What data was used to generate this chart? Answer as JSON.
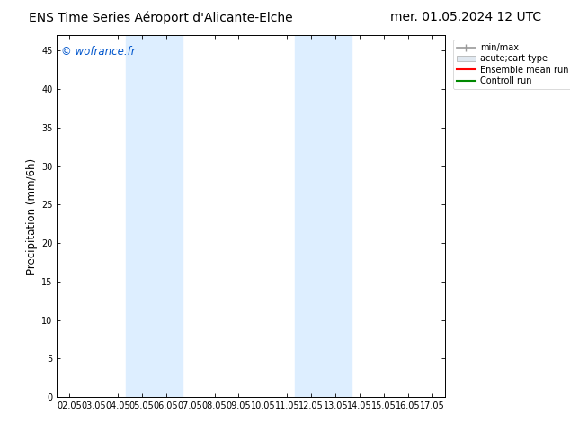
{
  "title_left": "ENS Time Series Aéroport d'Alicante-Elche",
  "title_right": "mer. 01.05.2024 12 UTC",
  "ylabel": "Precipitation (mm/6h)",
  "watermark": "© wofrance.fr",
  "watermark_color": "#0055cc",
  "x_tick_labels": [
    "02.05",
    "03.05",
    "04.05",
    "05.05",
    "06.05",
    "07.05",
    "08.05",
    "09.05",
    "10.05",
    "11.05",
    "12.05",
    "13.05",
    "14.05",
    "15.05",
    "16.05",
    "17.05"
  ],
  "x_tick_positions": [
    0,
    1,
    2,
    3,
    4,
    5,
    6,
    7,
    8,
    9,
    10,
    11,
    12,
    13,
    14,
    15
  ],
  "xlim": [
    -0.5,
    15.5
  ],
  "ylim": [
    0,
    47
  ],
  "yticks": [
    0,
    5,
    10,
    15,
    20,
    25,
    30,
    35,
    40,
    45
  ],
  "shaded_regions": [
    {
      "xmin": 2.33,
      "xmax": 4.67,
      "color": "#ddeeff"
    },
    {
      "xmin": 9.33,
      "xmax": 11.67,
      "color": "#ddeeff"
    }
  ],
  "legend_items": [
    {
      "label": "min/max",
      "color": "#999999",
      "lw": 1.2
    },
    {
      "label": "acute;cart type",
      "color": "#cccccc",
      "lw": 5
    },
    {
      "label": "Ensemble mean run",
      "color": "#ff0000",
      "lw": 1.5
    },
    {
      "label": "Controll run",
      "color": "#008800",
      "lw": 1.5
    }
  ],
  "bg_color": "#ffffff",
  "title_fontsize": 10,
  "tick_fontsize": 7,
  "ylabel_fontsize": 8.5
}
